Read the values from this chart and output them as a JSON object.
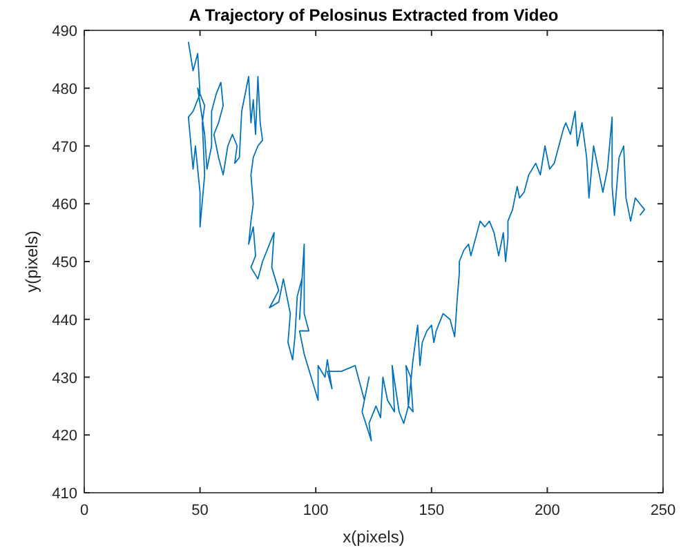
{
  "chart_data": {
    "type": "line",
    "title": "A Trajectory of Pelosinus Extracted from Video",
    "xlabel": "x(pixels)",
    "ylabel": "y(pixels)",
    "xlim": [
      0,
      250
    ],
    "xticks": [
      0,
      50,
      100,
      150,
      200,
      250
    ],
    "ylim": [
      410,
      490
    ],
    "yticks": [
      410,
      420,
      430,
      440,
      450,
      460,
      470,
      480,
      490
    ],
    "series": [
      {
        "color": "#0072bd",
        "x": [
          45,
          47,
          49,
          50,
          47,
          45,
          47,
          48,
          50,
          50,
          52,
          51,
          52,
          49,
          52,
          53,
          55,
          55,
          57,
          59,
          60,
          58,
          56,
          58,
          60,
          62,
          64,
          66,
          65,
          67,
          68,
          70,
          71,
          72,
          73,
          74,
          75,
          76,
          77,
          75,
          73,
          72,
          73,
          72,
          71,
          73,
          74,
          72,
          75,
          77,
          79,
          82,
          81,
          84,
          80,
          84,
          86,
          89,
          88,
          90,
          91,
          92,
          94,
          93,
          95,
          95,
          97,
          93,
          95,
          98,
          101,
          101,
          104,
          105,
          107,
          105,
          108,
          111,
          117,
          119,
          121,
          123,
          120,
          124,
          123,
          126,
          128,
          129,
          131,
          134,
          133,
          136,
          138,
          140,
          142,
          141,
          139,
          140,
          142,
          144,
          145,
          146,
          148,
          150,
          151,
          152,
          155,
          158,
          160,
          161,
          162,
          162,
          164,
          166,
          167,
          171,
          173,
          175,
          177,
          179,
          181,
          182,
          183,
          183,
          185,
          187,
          188,
          190,
          192,
          195,
          197,
          199,
          201,
          203,
          205,
          207,
          208,
          210,
          212,
          213,
          215,
          217,
          218,
          220,
          222,
          224,
          226,
          228,
          228,
          229,
          231,
          233,
          234,
          236,
          238,
          240,
          242,
          240
        ],
        "values": [
          488,
          483,
          486,
          479,
          476,
          475,
          466,
          470,
          462,
          456,
          465,
          474,
          477,
          480,
          472,
          466,
          470,
          476,
          479,
          481,
          477,
          474,
          472,
          468,
          465,
          470,
          472,
          470,
          467,
          468,
          476,
          480,
          482,
          474,
          478,
          472,
          482,
          474,
          471,
          470,
          468,
          465,
          460,
          457,
          453,
          456,
          451,
          449,
          447,
          450,
          452,
          455,
          449,
          445,
          442,
          443,
          447,
          441,
          436,
          433,
          437,
          444,
          447,
          440,
          453,
          441,
          438,
          438,
          434,
          430,
          426,
          432,
          430,
          433,
          428,
          431,
          431,
          431,
          432,
          429,
          426,
          430,
          424,
          419,
          422,
          425,
          423,
          430,
          426,
          424,
          432,
          424,
          422,
          425,
          424,
          430,
          432,
          425,
          433,
          439,
          432,
          436,
          438,
          439,
          436,
          438,
          441,
          440,
          437,
          443,
          448,
          450,
          452,
          453,
          451,
          457,
          456,
          457,
          455,
          451,
          455,
          450,
          454,
          457,
          459,
          463,
          461,
          462,
          465,
          467,
          465,
          470,
          466,
          467,
          470,
          473,
          474,
          472,
          476,
          470,
          474,
          468,
          461,
          470,
          466,
          462,
          466,
          475,
          463,
          458,
          468,
          470,
          461,
          457,
          461,
          460,
          459,
          458
        ]
      }
    ]
  }
}
